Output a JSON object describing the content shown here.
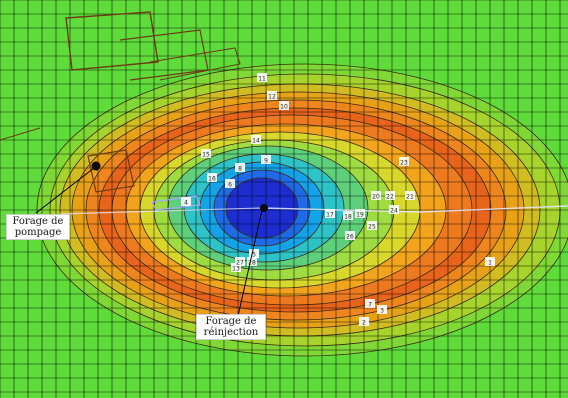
{
  "map": {
    "colors": {
      "background": "#5fdc3a",
      "grid": "#000000",
      "contour_bands": [
        "#7fd835",
        "#b4cc2a",
        "#e4a514",
        "#f08c1c",
        "#e86419",
        "#ef7f1f",
        "#f3b81a",
        "#c6df30",
        "#7fd94c",
        "#32c6ba",
        "#14a8e8",
        "#1f6fe8",
        "#1d2dd0"
      ],
      "outline": "#6b3b12",
      "bracket": "#a0a8ff"
    },
    "plume_icon": "concentric-contour-plume",
    "well_labels": [
      "11",
      "12",
      "10",
      "14",
      "9",
      "8",
      "15",
      "16",
      "6",
      "4",
      "17",
      "18",
      "19",
      "20",
      "22",
      "23",
      "21",
      "24",
      "25",
      "26",
      "13",
      "27",
      "28",
      "5",
      "7",
      "3",
      "2",
      "1"
    ]
  },
  "callouts": {
    "pumping": "Forage de pompage",
    "injection": "Forage de réinjection"
  }
}
